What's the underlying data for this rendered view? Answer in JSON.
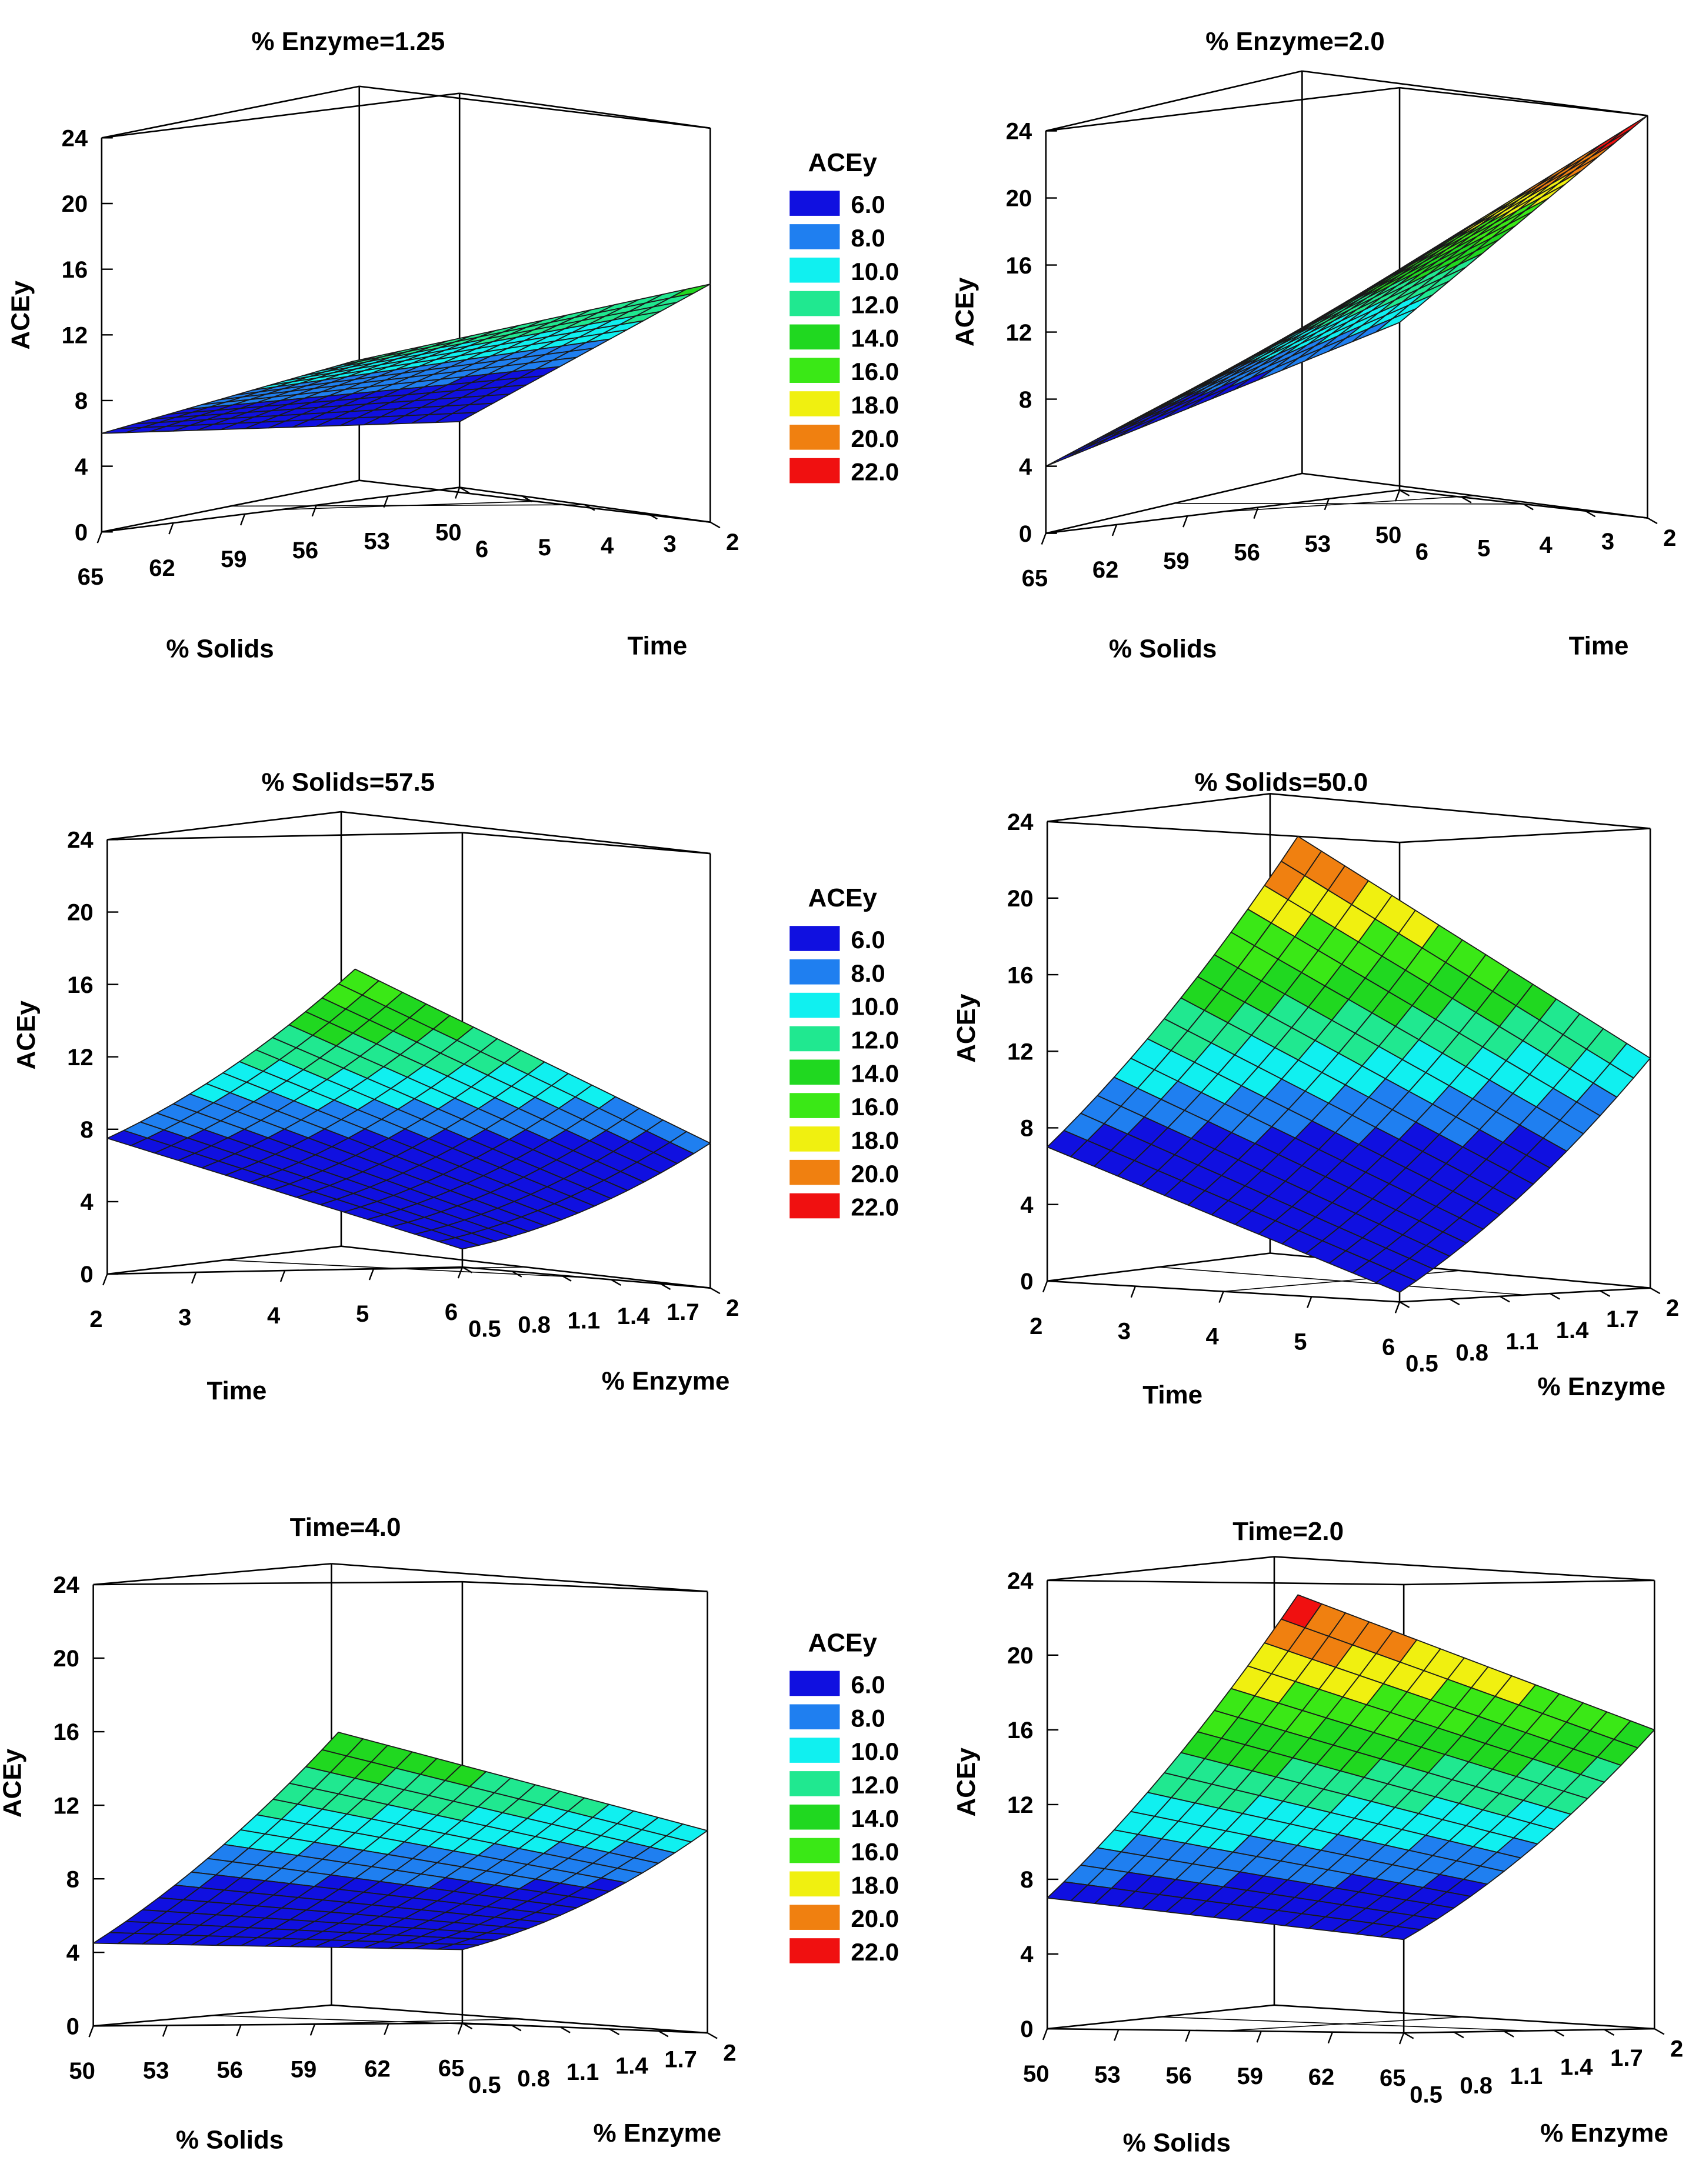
{
  "chart_data": [
    {
      "type": "surface",
      "title": "% Enzyme=1.25",
      "xlabel": "% Solids",
      "ylabel": "Time",
      "zlabel": "ACEy",
      "x_ticks": [
        "65",
        "62",
        "59",
        "56",
        "53",
        "50"
      ],
      "y_ticks": [
        "6",
        "5",
        "4",
        "3",
        "2"
      ],
      "z_ticks": [
        "0",
        "4",
        "8",
        "12",
        "16",
        "20",
        "24"
      ],
      "x_range": [
        65,
        50
      ],
      "y_range": [
        6,
        2
      ],
      "zlim": [
        0,
        24
      ],
      "corner_values": {
        "x_first_y_first": 6.0,
        "x_last_y_first": 4.0,
        "x_first_y_last": 12.5,
        "x_last_y_last": 14.5
      },
      "curvature": {
        "x": 0,
        "y": 0
      }
    },
    {
      "type": "surface",
      "title": "% Enzyme=2.0",
      "xlabel": "% Solids",
      "ylabel": "Time",
      "zlabel": "ACEy",
      "x_ticks": [
        "65",
        "62",
        "59",
        "56",
        "53",
        "50"
      ],
      "y_ticks": [
        "6",
        "5",
        "4",
        "3",
        "2"
      ],
      "z_ticks": [
        "0",
        "4",
        "8",
        "12",
        "16",
        "20",
        "24"
      ],
      "x_range": [
        65,
        50
      ],
      "y_range": [
        6,
        2
      ],
      "zlim": [
        0,
        24
      ],
      "corner_values": {
        "x_first_y_first": 4.0,
        "x_last_y_first": 10.0,
        "x_first_y_last": 13.5,
        "x_last_y_last": 24.0
      },
      "curvature": {
        "x": 0,
        "y": 0
      }
    },
    {
      "type": "surface",
      "title": "% Solids=57.5",
      "xlabel": "Time",
      "ylabel": "% Enzyme",
      "zlabel": "ACEy",
      "x_ticks": [
        "2",
        "3",
        "4",
        "5",
        "6"
      ],
      "y_ticks": [
        "0.5",
        "0.8",
        "1.1",
        "1.4",
        "1.7",
        "2"
      ],
      "z_ticks": [
        "0",
        "4",
        "8",
        "12",
        "16",
        "20",
        "24"
      ],
      "x_range": [
        2,
        6
      ],
      "y_range": [
        0.5,
        2
      ],
      "zlim": [
        0,
        24
      ],
      "corner_values": {
        "x_first_y_first": 7.5,
        "x_last_y_first": 1.0,
        "x_first_y_last": 18.0,
        "x_last_y_last": 8.0
      },
      "curvature": {
        "x": 0,
        "y": -3.0
      }
    },
    {
      "type": "surface",
      "title": "% Solids=50.0",
      "xlabel": "Time",
      "ylabel": "% Enzyme",
      "zlabel": "ACEy",
      "x_ticks": [
        "2",
        "3",
        "4",
        "5",
        "6"
      ],
      "y_ticks": [
        "0.5",
        "0.8",
        "1.1",
        "1.4",
        "1.7",
        "2"
      ],
      "z_ticks": [
        "0",
        "4",
        "8",
        "12",
        "16",
        "20",
        "24"
      ],
      "x_range": [
        2,
        6
      ],
      "y_range": [
        0.5,
        2
      ],
      "zlim": [
        0,
        24
      ],
      "corner_values": {
        "x_first_y_first": 7.0,
        "x_last_y_first": 0.5,
        "x_first_y_last": 22.5,
        "x_last_y_last": 12.0
      },
      "curvature": {
        "x": 0,
        "y": -3.5
      }
    },
    {
      "type": "surface",
      "title": "Time=4.0",
      "xlabel": "% Solids",
      "ylabel": "% Enzyme",
      "zlabel": "ACEy",
      "x_ticks": [
        "50",
        "53",
        "56",
        "59",
        "62",
        "65"
      ],
      "y_ticks": [
        "0.5",
        "0.8",
        "1.1",
        "1.4",
        "1.7",
        "2"
      ],
      "z_ticks": [
        "0",
        "4",
        "8",
        "12",
        "16",
        "20",
        "24"
      ],
      "x_range": [
        50,
        65
      ],
      "y_range": [
        0.5,
        2
      ],
      "zlim": [
        0,
        24
      ],
      "corner_values": {
        "x_first_y_first": 4.5,
        "x_last_y_first": 4.0,
        "x_first_y_last": 16.5,
        "x_last_y_last": 11.0
      },
      "curvature": {
        "x": 0,
        "y": -3.0
      }
    },
    {
      "type": "surface",
      "title": "Time=2.0",
      "xlabel": "% Solids",
      "ylabel": "% Enzyme",
      "zlabel": "ACEy",
      "x_ticks": [
        "50",
        "53",
        "56",
        "59",
        "62",
        "65"
      ],
      "y_ticks": [
        "0.5",
        "0.8",
        "1.1",
        "1.4",
        "1.7",
        "2"
      ],
      "z_ticks": [
        "0",
        "4",
        "8",
        "12",
        "16",
        "20",
        "24"
      ],
      "x_range": [
        50,
        65
      ],
      "y_range": [
        0.5,
        2
      ],
      "zlim": [
        0,
        24
      ],
      "corner_values": {
        "x_first_y_first": 7.0,
        "x_last_y_first": 5.0,
        "x_first_y_last": 23.0,
        "x_last_y_last": 16.0
      },
      "curvature": {
        "x": 0,
        "y": -3.5
      }
    }
  ],
  "legend": {
    "title": "ACEy",
    "items": [
      {
        "label": "6.0",
        "color": "#1010e0"
      },
      {
        "label": "8.0",
        "color": "#1f7ff0"
      },
      {
        "label": "10.0",
        "color": "#10f0f0"
      },
      {
        "label": "12.0",
        "color": "#20e890"
      },
      {
        "label": "14.0",
        "color": "#20d820"
      },
      {
        "label": "16.0",
        "color": "#3ae816"
      },
      {
        "label": "18.0",
        "color": "#f0f010"
      },
      {
        "label": "20.0",
        "color": "#f08010"
      },
      {
        "label": "22.0",
        "color": "#f01010"
      }
    ]
  }
}
